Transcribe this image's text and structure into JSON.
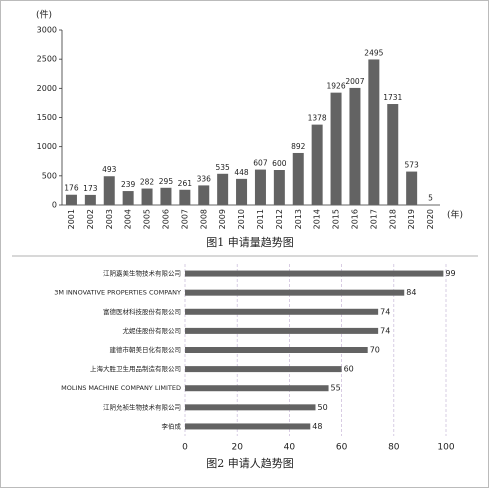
{
  "chart_data": [
    {
      "type": "bar",
      "caption": "图1 申请量趋势图",
      "y_label": "(件)",
      "x_label": "(年)",
      "categories": [
        "2001",
        "2002",
        "2003",
        "2004",
        "2005",
        "2006",
        "2007",
        "2008",
        "2009",
        "2010",
        "2011",
        "2012",
        "2013",
        "2014",
        "2015",
        "2016",
        "2017",
        "2018",
        "2019",
        "2020"
      ],
      "values": [
        176,
        173,
        493,
        239,
        282,
        295,
        261,
        336,
        535,
        448,
        607,
        600,
        892,
        1378,
        1926,
        2007,
        2495,
        1731,
        573,
        5
      ],
      "color": "#636363",
      "ylim": [
        0,
        3000
      ],
      "yticks": [
        0,
        500,
        1000,
        1500,
        2000,
        2500,
        3000
      ],
      "grid": false
    },
    {
      "type": "barh",
      "caption": "图2 申请人趋势图",
      "categories": [
        "江阴嘉美生物技术有限公司",
        "3M INNOVATIVE PROPERTIES COMPANY",
        "富德医材科技股份有限公司",
        "尤妮佳股份有限公司",
        "建德市朝美日化有限公司",
        "上海大胜卫生用品制造有限公司",
        "MOLINS MACHINE COMPANY LIMITED",
        "江阴允祯生物技术有限公司",
        "李伯成"
      ],
      "values": [
        99,
        84,
        74,
        74,
        70,
        60,
        55,
        50,
        48
      ],
      "color": "#636363",
      "xlim": [
        0,
        100
      ],
      "xticks": [
        0,
        20,
        40,
        60,
        80,
        100
      ],
      "grid": true
    }
  ]
}
